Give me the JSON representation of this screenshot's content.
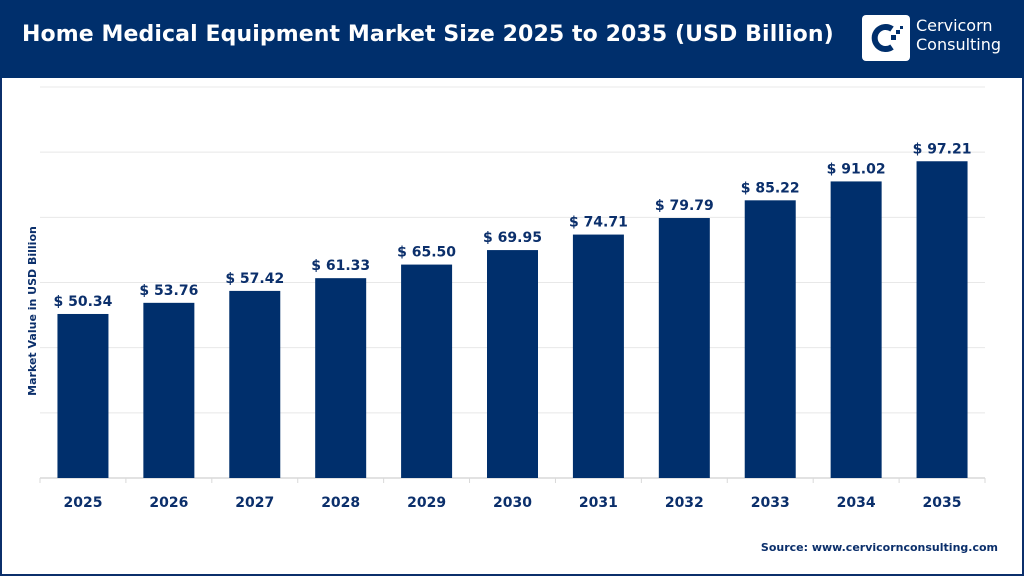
{
  "header": {
    "title": "Home Medical Equipment Market Size 2025 to 2035 (USD Billion)",
    "logo_text_line1": "Cervicorn",
    "logo_text_line2": "Consulting"
  },
  "source": "Source: www.cervicornconsulting.com",
  "colors": {
    "bar": "#002f6c",
    "header": "#002f6c",
    "grid": "#e6e6e6"
  },
  "chart_data": {
    "type": "bar",
    "title": "Home Medical Equipment Market Size 2025 to 2035 (USD Billion)",
    "xlabel": "",
    "ylabel": "Market Value in USD Billion",
    "categories": [
      "2025",
      "2026",
      "2027",
      "2028",
      "2029",
      "2030",
      "2031",
      "2032",
      "2033",
      "2034",
      "2035"
    ],
    "values": [
      50.34,
      53.76,
      57.42,
      61.33,
      65.5,
      69.95,
      74.71,
      79.79,
      85.22,
      91.02,
      97.21
    ],
    "data_labels": [
      "$ 50.34",
      "$ 53.76",
      "$ 57.42",
      "$ 61.33",
      "$ 65.50",
      "$ 69.95",
      "$ 74.71",
      "$ 79.79",
      "$ 85.22",
      "$ 91.02",
      "$ 97.21"
    ],
    "ylim": [
      0,
      120
    ],
    "grid": true,
    "y_tick_labels_shown": false
  }
}
